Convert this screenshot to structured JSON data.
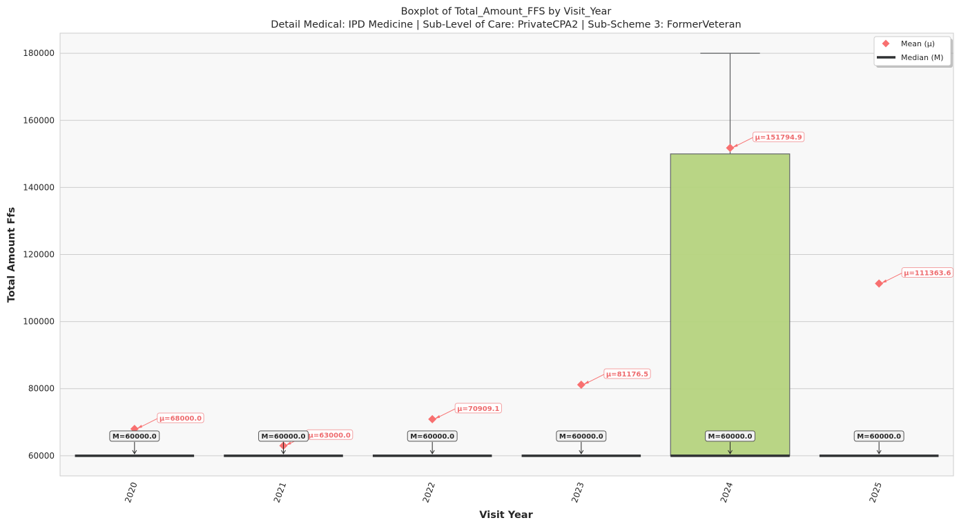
{
  "chart_data": {
    "type": "box",
    "title": "Boxplot of Total_Amount_FFS by Visit_Year",
    "subtitle": "Detail Medical: IPD Medicine | Sub-Level of Care: PrivateCPA2 | Sub-Scheme 3: FormerVeteran",
    "xlabel": "Visit Year",
    "ylabel": "Total Amount Ffs",
    "ylim": [
      54000,
      186000
    ],
    "yticks": [
      60000,
      80000,
      100000,
      120000,
      140000,
      160000,
      180000
    ],
    "ytick_labels": [
      "60000",
      "80000",
      "100000",
      "120000",
      "140000",
      "160000",
      "180000"
    ],
    "grid": "horizontal",
    "legend_position": "top-right",
    "legend": [
      {
        "label": "Mean (μ)",
        "marker": "diamond",
        "color": "#f87070"
      },
      {
        "label": "Median (M)",
        "marker": "line",
        "color": "#2f3133"
      }
    ],
    "categories": [
      "2020",
      "2021",
      "2022",
      "2023",
      "2024",
      "2025"
    ],
    "boxes": [
      {
        "q1": 60000,
        "median": 60000,
        "q3": 60000,
        "whisker_low": 60000,
        "whisker_high": 60000,
        "mean": 68000.0,
        "median_label": "M=60000.0",
        "mean_label": "μ=68000.0"
      },
      {
        "q1": 60000,
        "median": 60000,
        "q3": 60000,
        "whisker_low": 60000,
        "whisker_high": 60000,
        "mean": 63000.0,
        "median_label": "M=60000.0",
        "mean_label": "μ=63000.0"
      },
      {
        "q1": 60000,
        "median": 60000,
        "q3": 60000,
        "whisker_low": 60000,
        "whisker_high": 60000,
        "mean": 70909.1,
        "median_label": "M=60000.0",
        "mean_label": "μ=70909.1"
      },
      {
        "q1": 60000,
        "median": 60000,
        "q3": 60000,
        "whisker_low": 60000,
        "whisker_high": 60000,
        "mean": 81176.5,
        "median_label": "M=60000.0",
        "mean_label": "μ=81176.5"
      },
      {
        "q1": 60000,
        "median": 60000,
        "q3": 150000,
        "whisker_low": 60000,
        "whisker_high": 180000,
        "mean": 151794.9,
        "median_label": "M=60000.0",
        "mean_label": "μ=151794.9"
      },
      {
        "q1": 60000,
        "median": 60000,
        "q3": 60000,
        "whisker_low": 60000,
        "whisker_high": 60000,
        "mean": 111363.6,
        "median_label": "M=60000.0",
        "mean_label": "μ=111363.6"
      }
    ],
    "colors": {
      "box_fill": "#b6d47f",
      "median": "#2f3133",
      "mean": "#f87070",
      "plot_background": "#f8f8f8",
      "grid": "#cccccc"
    }
  }
}
